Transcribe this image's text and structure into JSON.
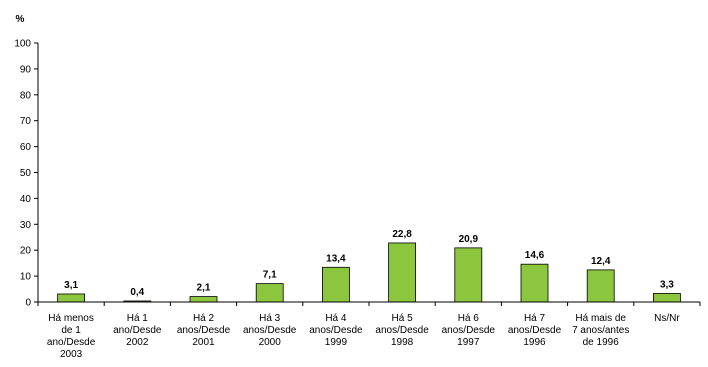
{
  "chart_data": {
    "type": "bar",
    "y_unit": "%",
    "ylim": [
      0,
      100
    ],
    "yticks": [
      "0",
      "10",
      "20",
      "30",
      "40",
      "50",
      "60",
      "70",
      "80",
      "90",
      "100"
    ],
    "grid": false,
    "legend": "none",
    "bar_color": "#8cc63f",
    "bar_stroke": "#000000",
    "categories": [
      [
        "Há menos",
        "de 1",
        "ano/Desde",
        "2003"
      ],
      [
        "Há 1",
        "ano/Desde",
        "2002"
      ],
      [
        "Há 2",
        "anos/Desde",
        "2001"
      ],
      [
        "Há 3",
        "anos/Desde",
        "2000"
      ],
      [
        "Há 4",
        "anos/Desde",
        "1999"
      ],
      [
        "Há 5",
        "anos/Desde",
        "1998"
      ],
      [
        "Há 6",
        "anos/Desde",
        "1997"
      ],
      [
        "Há 7",
        "anos/Desde",
        "1996"
      ],
      [
        "Há mais de",
        "7 anos/antes",
        "de 1996"
      ],
      [
        "Ns/Nr"
      ]
    ],
    "values": [
      3.1,
      0.4,
      2.1,
      7.1,
      13.4,
      22.8,
      20.9,
      14.6,
      12.4,
      3.3
    ],
    "value_labels": [
      "3,1",
      "0,4",
      "2,1",
      "7,1",
      "13,4",
      "22,8",
      "20,9",
      "14,6",
      "12,4",
      "3,3"
    ]
  }
}
